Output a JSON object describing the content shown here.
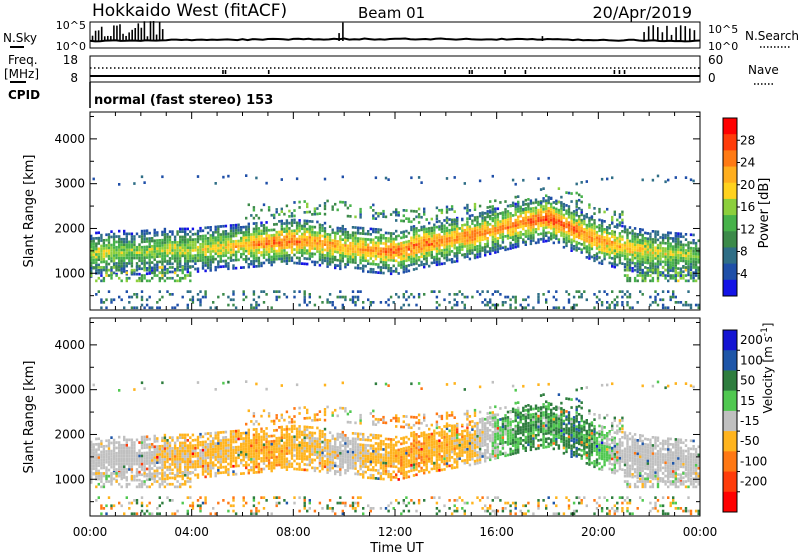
{
  "header": {
    "station": "Hokkaido West (fitACF)",
    "beam": "Beam 01",
    "date": "20/Apr/2019"
  },
  "noise_panel": {
    "left_label": "N.Sky",
    "left_ticks": [
      "10^5",
      "10^0"
    ],
    "right_ticks": [
      "10^5",
      "10^0"
    ],
    "right_label": "N.Search"
  },
  "freq_panel": {
    "left_label_1": "Freq.",
    "left_label_2": "[MHz]",
    "left_ticks": [
      "18",
      "8"
    ],
    "right_ticks": [
      "60",
      "0"
    ],
    "right_label": "Nave"
  },
  "cpid": {
    "label": "CPID",
    "text": "normal (fast stereo) 153"
  },
  "colors": {
    "power": [
      "#1414e6",
      "#1f4fa8",
      "#2f6e86",
      "#3c8a4a",
      "#47b24a",
      "#8ccf3c",
      "#ffd21e",
      "#ffae1e",
      "#ff7a14",
      "#ff3c0a",
      "#ff0000"
    ],
    "velocity": [
      "#1414d2",
      "#1e56a8",
      "#2e7d3e",
      "#50c850",
      "#c0c0c0",
      "#ffb41e",
      "#ff7814",
      "#ff3c0a",
      "#ff0000"
    ]
  },
  "chart_data": [
    {
      "type": "heatmap",
      "title": "Power",
      "ylabel": "Slant Range [km]",
      "ylim": [
        180,
        4600
      ],
      "yticks": [
        "4000",
        "3000",
        "2000",
        "1000"
      ],
      "ytick_values": [
        4000,
        3000,
        2000,
        1000
      ],
      "colorbar_label": "Power [dB]",
      "colorbar_ticks": [
        "28",
        "24",
        "20",
        "16",
        "12",
        "8",
        "4"
      ],
      "colorbar_tick_values": [
        28,
        24,
        20,
        16,
        12,
        8,
        4
      ],
      "colorbar_range": [
        0,
        32
      ],
      "main_band": {
        "x_hours": [
          0,
          1,
          2,
          3,
          4,
          5,
          6,
          7,
          8,
          9,
          10,
          11,
          12,
          13,
          14,
          15,
          16,
          17,
          18,
          19,
          20,
          21,
          22,
          23,
          24
        ],
        "center_km": [
          1400,
          1450,
          1450,
          1500,
          1500,
          1550,
          1600,
          1650,
          1700,
          1650,
          1550,
          1500,
          1450,
          1600,
          1700,
          1800,
          1950,
          2100,
          2200,
          1950,
          1700,
          1550,
          1450,
          1400,
          1350
        ],
        "peak_power_db": [
          18,
          18,
          16,
          18,
          18,
          20,
          22,
          26,
          26,
          24,
          22,
          24,
          26,
          26,
          24,
          26,
          24,
          26,
          28,
          26,
          24,
          22,
          20,
          18,
          16
        ]
      },
      "upper_echoes": {
        "x_hours": [
          7,
          9,
          11,
          13,
          15,
          17,
          18,
          19,
          20
        ],
        "range_km": [
          2400,
          2500,
          2400,
          2300,
          2400,
          2600,
          2800,
          2700,
          2300
        ]
      },
      "near_range_echoes_km": [
        350,
        500
      ]
    },
    {
      "type": "heatmap",
      "title": "Velocity",
      "ylabel": "Slant Range [km]",
      "ylim": [
        180,
        4600
      ],
      "yticks": [
        "4000",
        "3000",
        "2000",
        "1000"
      ],
      "ytick_values": [
        4000,
        3000,
        2000,
        1000
      ],
      "xlabel": "Time UT",
      "xticks": [
        "00:00",
        "04:00",
        "08:00",
        "12:00",
        "16:00",
        "20:00",
        "00:00"
      ],
      "xtick_hours": [
        0,
        4,
        8,
        12,
        16,
        20,
        24
      ],
      "colorbar_label": "Velocity [m s^-1]",
      "colorbar_ticks": [
        "200",
        "100",
        "50",
        "15",
        "-15",
        "-50",
        "-100",
        "-200"
      ],
      "colorbar_tick_values": [
        200,
        100,
        50,
        15,
        -15,
        -50,
        -100,
        -200
      ],
      "dominant_velocity_ms": [
        0,
        0,
        0,
        -20,
        -20,
        -20,
        -30,
        -40,
        -30,
        -20,
        0,
        -20,
        -40,
        -40,
        -30,
        -20,
        20,
        40,
        30,
        60,
        20,
        0,
        0,
        0,
        0
      ]
    }
  ]
}
